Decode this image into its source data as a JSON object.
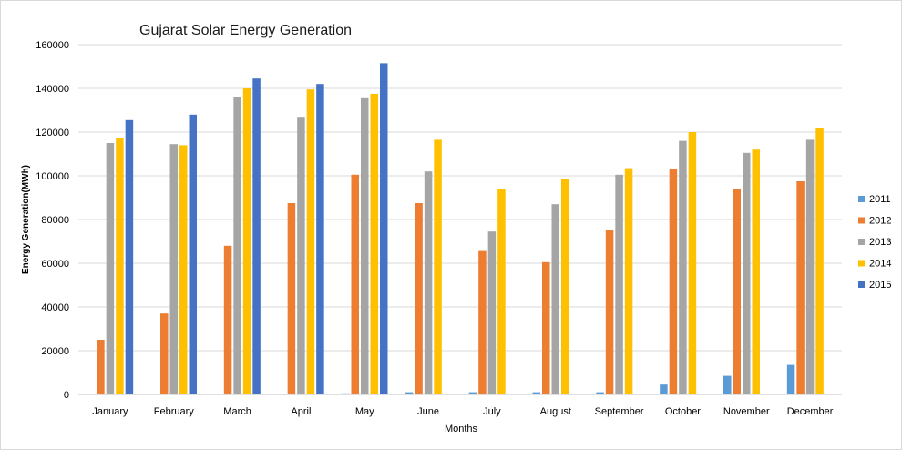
{
  "chart_data": {
    "type": "bar",
    "title": "Gujarat Solar Energy Generation",
    "xlabel": "Months",
    "ylabel": "Energy Generation(MWh)",
    "ylim": [
      0,
      160000
    ],
    "yticks": [
      0,
      20000,
      40000,
      60000,
      80000,
      100000,
      120000,
      140000,
      160000
    ],
    "grid": true,
    "legend_position": "right",
    "categories": [
      "January",
      "February",
      "March",
      "April",
      "May",
      "June",
      "July",
      "August",
      "September",
      "October",
      "November",
      "December"
    ],
    "series": [
      {
        "name": "2011",
        "color": "#5B9BD5",
        "values": [
          0,
          0,
          0,
          0,
          500,
          1000,
          1000,
          1000,
          1000,
          4500,
          8500,
          13500
        ]
      },
      {
        "name": "2012",
        "color": "#ED7D31",
        "values": [
          25000,
          37000,
          68000,
          87500,
          100500,
          87500,
          66000,
          60500,
          75000,
          103000,
          94000,
          97500
        ]
      },
      {
        "name": "2013",
        "color": "#A5A5A5",
        "values": [
          115000,
          114500,
          136000,
          127000,
          135500,
          102000,
          74500,
          87000,
          100500,
          116000,
          110500,
          116500
        ]
      },
      {
        "name": "2014",
        "color": "#FFC000",
        "values": [
          117500,
          114000,
          140000,
          139500,
          137500,
          116500,
          94000,
          98500,
          103500,
          120000,
          112000,
          122000
        ]
      },
      {
        "name": "2015",
        "color": "#4472C4",
        "values": [
          125500,
          128000,
          144500,
          142000,
          151500,
          null,
          null,
          null,
          null,
          null,
          null,
          null
        ]
      }
    ]
  }
}
